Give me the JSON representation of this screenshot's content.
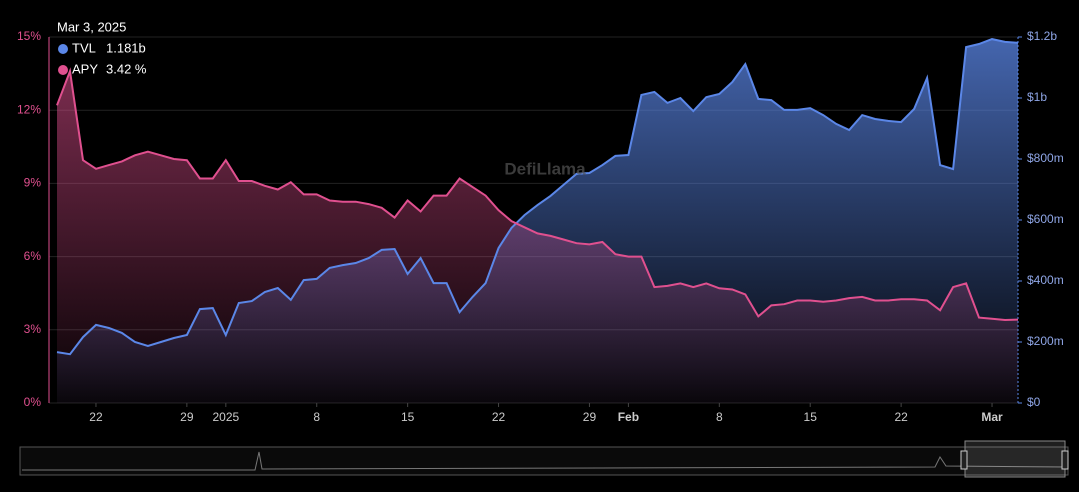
{
  "chart_data": {
    "type": "line",
    "watermark": "DefiLlama",
    "tooltip": {
      "title": "Mar 3, 2025",
      "labels": [
        "1.181b",
        "3.42 %"
      ]
    },
    "x": [
      "2024-12-19",
      "2024-12-20",
      "2024-12-21",
      "2024-12-22",
      "2024-12-23",
      "2024-12-24",
      "2024-12-25",
      "2024-12-26",
      "2024-12-27",
      "2024-12-28",
      "2024-12-29",
      "2024-12-30",
      "2024-12-31",
      "2025-01-01",
      "2025-01-02",
      "2025-01-03",
      "2025-01-04",
      "2025-01-05",
      "2025-01-06",
      "2025-01-07",
      "2025-01-08",
      "2025-01-09",
      "2025-01-10",
      "2025-01-11",
      "2025-01-12",
      "2025-01-13",
      "2025-01-14",
      "2025-01-15",
      "2025-01-16",
      "2025-01-17",
      "2025-01-18",
      "2025-01-19",
      "2025-01-20",
      "2025-01-21",
      "2025-01-22",
      "2025-01-23",
      "2025-01-24",
      "2025-01-25",
      "2025-01-26",
      "2025-01-27",
      "2025-01-28",
      "2025-01-29",
      "2025-01-30",
      "2025-01-31",
      "2025-02-01",
      "2025-02-02",
      "2025-02-03",
      "2025-02-04",
      "2025-02-05",
      "2025-02-06",
      "2025-02-07",
      "2025-02-08",
      "2025-02-09",
      "2025-02-10",
      "2025-02-11",
      "2025-02-12",
      "2025-02-13",
      "2025-02-14",
      "2025-02-15",
      "2025-02-16",
      "2025-02-17",
      "2025-02-18",
      "2025-02-19",
      "2025-02-20",
      "2025-02-21",
      "2025-02-22",
      "2025-02-23",
      "2025-02-24",
      "2025-02-25",
      "2025-02-26",
      "2025-02-27",
      "2025-02-28",
      "2025-03-01",
      "2025-03-02",
      "2025-03-03"
    ],
    "xticks": [
      {
        "value": "2024-12-22",
        "label": "22"
      },
      {
        "value": "2024-12-29",
        "label": "29"
      },
      {
        "value": "2025-01-01",
        "label": "2025"
      },
      {
        "value": "2025-01-08",
        "label": "8"
      },
      {
        "value": "2025-01-15",
        "label": "15"
      },
      {
        "value": "2025-01-22",
        "label": "22"
      },
      {
        "value": "2025-01-29",
        "label": "29"
      },
      {
        "value": "2025-02-01",
        "label": "Feb"
      },
      {
        "value": "2025-02-08",
        "label": "8"
      },
      {
        "value": "2025-02-15",
        "label": "15"
      },
      {
        "value": "2025-02-22",
        "label": "22"
      },
      {
        "value": "2025-03-01",
        "label": "Mar"
      }
    ],
    "ylim": [
      0,
      15
    ],
    "yticks": [
      {
        "value": 0,
        "label": "0%"
      },
      {
        "value": 3,
        "label": "3%"
      },
      {
        "value": 6,
        "label": "6%"
      },
      {
        "value": 9,
        "label": "9%"
      },
      {
        "value": 12,
        "label": "12%"
      },
      {
        "value": 15,
        "label": "15%"
      }
    ],
    "y2lim": [
      0,
      1200000000
    ],
    "y2ticks": [
      {
        "value": 0,
        "label": "$0"
      },
      {
        "value": 200000000,
        "label": "$200m"
      },
      {
        "value": 400000000,
        "label": "$400m"
      },
      {
        "value": 600000000,
        "label": "$600m"
      },
      {
        "value": 800000000,
        "label": "$800m"
      },
      {
        "value": 1000000000,
        "label": "$1b"
      },
      {
        "value": 1200000000,
        "label": "$1.2b"
      }
    ],
    "grid": true,
    "series": [
      {
        "name": "TVL",
        "color": "#5b87e8",
        "axis": "y2",
        "values": [
          167000000,
          160000000,
          216000000,
          256000000,
          246000000,
          230000000,
          200000000,
          187000000,
          200000000,
          213000000,
          223000000,
          308000000,
          311000000,
          223000000,
          328000000,
          334000000,
          364000000,
          377000000,
          338000000,
          403000000,
          407000000,
          443000000,
          452000000,
          459000000,
          475000000,
          502000000,
          505000000,
          423000000,
          475000000,
          393000000,
          393000000,
          298000000,
          348000000,
          393000000,
          508000000,
          574000000,
          616000000,
          649000000,
          679000000,
          715000000,
          751000000,
          754000000,
          780000000,
          810000000,
          813000000,
          1010000000,
          1020000000,
          984000000,
          1000000000,
          957000000,
          1003000000,
          1013000000,
          1052000000,
          1111000000,
          997000000,
          993000000,
          961000000,
          961000000,
          967000000,
          944000000,
          915000000,
          895000000,
          944000000,
          931000000,
          925000000,
          921000000,
          964000000,
          1066000000,
          780000000,
          767000000,
          1167000000,
          1177000000,
          1193000000,
          1184000000,
          1181000000
        ]
      },
      {
        "name": "APY",
        "color": "#e0508f",
        "axis": "y",
        "values": [
          12.2,
          13.6,
          9.95,
          9.6,
          9.75,
          9.9,
          10.15,
          10.3,
          10.15,
          10.0,
          9.95,
          9.2,
          9.2,
          9.95,
          9.1,
          9.1,
          8.9,
          8.75,
          9.05,
          8.55,
          8.55,
          8.3,
          8.25,
          8.25,
          8.15,
          8.0,
          7.6,
          8.3,
          7.85,
          8.5,
          8.5,
          9.2,
          8.85,
          8.5,
          7.9,
          7.45,
          7.2,
          6.95,
          6.85,
          6.7,
          6.55,
          6.5,
          6.6,
          6.1,
          6.0,
          6.0,
          4.75,
          4.8,
          4.9,
          4.75,
          4.9,
          4.7,
          4.65,
          4.45,
          3.55,
          4.0,
          4.05,
          4.2,
          4.2,
          4.15,
          4.2,
          4.3,
          4.35,
          4.2,
          4.2,
          4.25,
          4.25,
          4.2,
          3.8,
          4.75,
          4.9,
          3.5,
          3.45,
          3.4,
          3.42
        ]
      }
    ]
  }
}
